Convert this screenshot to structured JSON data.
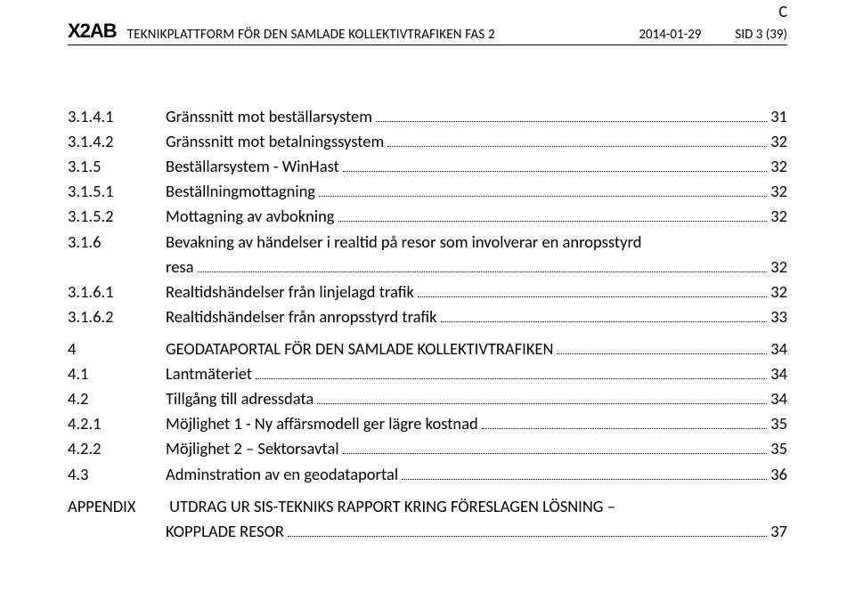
{
  "corner_letter": "C",
  "header": {
    "logo": "X2AB",
    "title": "TEKNIKPLATTFORM FÖR DEN SAMLADE KOLLEKTIVTRAFIKEN FAS 2",
    "date": "2014-01-29",
    "page_ref": "SID 3 (39)"
  },
  "toc": [
    {
      "num": "3.1.4.1",
      "text": "Gränssnitt mot beställarsystem",
      "page": "31"
    },
    {
      "num": "3.1.4.2",
      "text": "Gränssnitt mot betalningssystem",
      "page": "32"
    },
    {
      "num": "3.1.5",
      "text": "Beställarsystem - WinHast",
      "page": "32"
    },
    {
      "num": "3.1.5.1",
      "text": "Beställningmottagning",
      "page": "32"
    },
    {
      "num": "3.1.5.2",
      "text": "Mottagning av avbokning",
      "page": "32"
    },
    {
      "num": "3.1.6",
      "text_l1": "Bevakning av händelser i realtid på resor som involverar en anropsstyrd",
      "text_l2": "resa",
      "page": "32",
      "multi": true
    },
    {
      "num": "3.1.6.1",
      "text": "Realtidshändelser från linjelagd trafik",
      "page": "32"
    },
    {
      "num": "3.1.6.2",
      "text": "Realtidshändelser från anropsstyrd trafik",
      "page": "33"
    },
    {
      "num": "4",
      "text": "GEODATAPORTAL FÖR DEN SAMLADE KOLLEKTIVTRAFIKEN",
      "page": "34",
      "gap": true
    },
    {
      "num": "4.1",
      "text": "Lantmäteriet",
      "page": "34"
    },
    {
      "num": "4.2",
      "text": "Tillgång till adressdata",
      "page": "34"
    },
    {
      "num": "4.2.1",
      "text": "Möjlighet 1  - Ny affärsmodell ger lägre kostnad",
      "page": "35"
    },
    {
      "num": "4.2.2",
      "text": "Möjlighet 2 – Sektorsavtal",
      "page": "35"
    },
    {
      "num": "4.3",
      "text": "Adminstration av en geodataportal",
      "page": "36"
    }
  ],
  "appendix": {
    "label": "APPENDIX",
    "line1": "UTDRAG UR SIS-TEKNIKS RAPPORT  KRING  FÖRESLAGEN LÖSNING –",
    "line2": "KOPPLADE RESOR",
    "page": "37"
  }
}
